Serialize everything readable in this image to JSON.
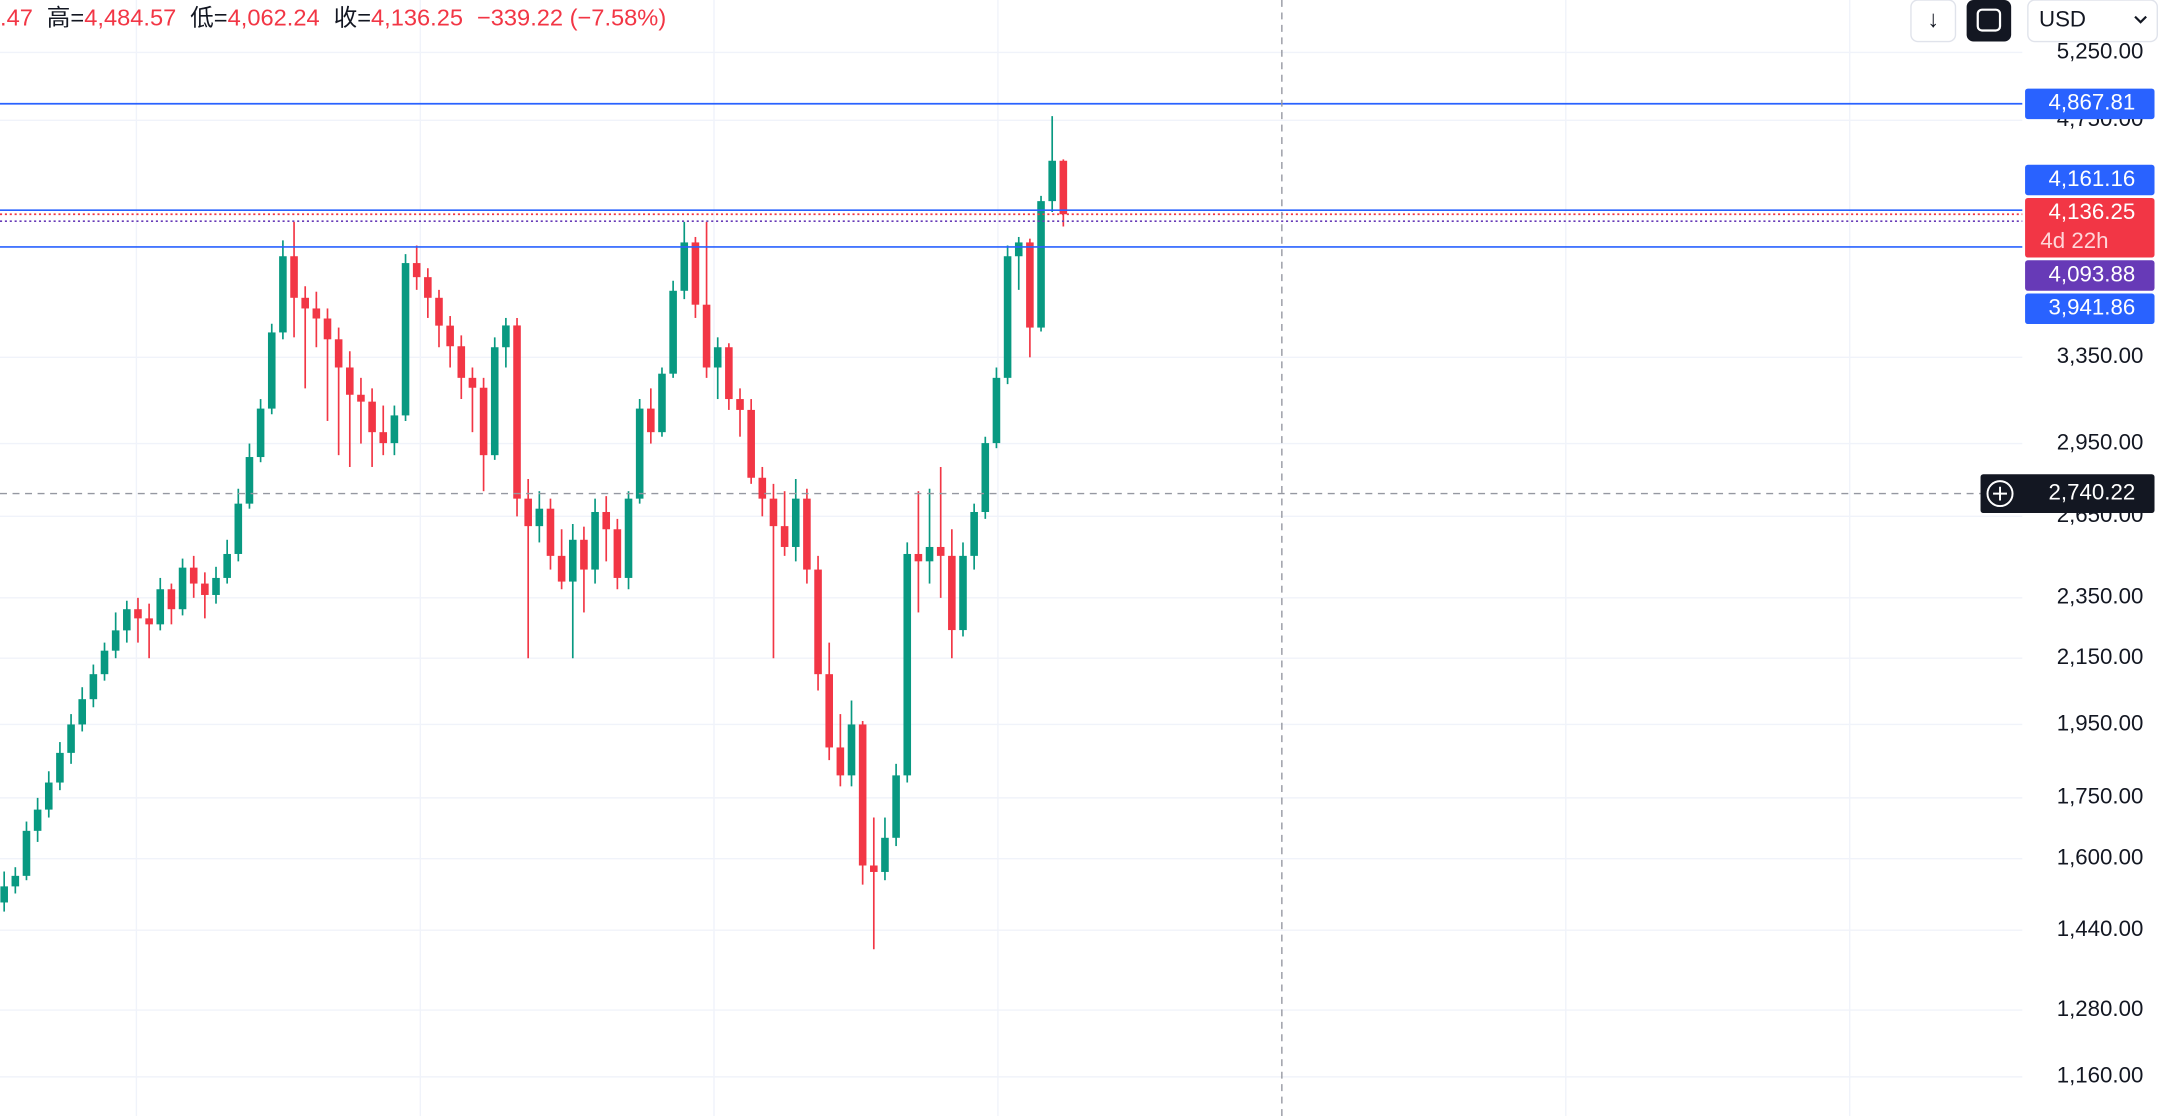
{
  "chart_data": {
    "type": "candlestick",
    "header": [
      {
        "text": ".47",
        "color": "#f23645"
      },
      {
        "text": "高=",
        "color": "#131722"
      },
      {
        "text": "4,484.57",
        "color": "#f23645"
      },
      {
        "text": "低=",
        "color": "#131722"
      },
      {
        "text": "4,062.24",
        "color": "#f23645"
      },
      {
        "text": "收=",
        "color": "#131722"
      },
      {
        "text": "4,136.25",
        "color": "#f23645"
      },
      {
        "text": "−339.22 (−7.58%)",
        "color": "#f23645"
      }
    ],
    "currency": "USD",
    "log_scale": true,
    "grid": true,
    "up_color": "#089981",
    "down_color": "#f23645",
    "ylim": [
      1095,
      5672
    ],
    "yticks": [
      {
        "value": 1160,
        "label": "1,160.00"
      },
      {
        "value": 1280,
        "label": "1,280.00"
      },
      {
        "value": 1440,
        "label": "1,440.00"
      },
      {
        "value": 1600,
        "label": "1,600.00"
      },
      {
        "value": 1750,
        "label": "1,750.00"
      },
      {
        "value": 1950,
        "label": "1,950.00"
      },
      {
        "value": 2150,
        "label": "2,150.00"
      },
      {
        "value": 2350,
        "label": "2,350.00"
      },
      {
        "value": 2650,
        "label": "2,650.00"
      },
      {
        "value": 2950,
        "label": "2,950.00"
      },
      {
        "value": 3350,
        "label": "3,350.00"
      },
      {
        "value": 4750,
        "label": "4,750.00"
      },
      {
        "value": 5250,
        "label": "5,250.00"
      }
    ],
    "price_lines": [
      {
        "value": 4867.81,
        "label": "4,867.81",
        "color": "#2962ff",
        "style": "solid"
      },
      {
        "value": 4161.16,
        "label": "4,161.16",
        "color": "#2962ff",
        "style": "solid"
      },
      {
        "value": 4093.88,
        "label": "4,093.88",
        "color": "#673ab7",
        "style": "dotted"
      },
      {
        "value": 3941.86,
        "label": "3,941.86",
        "color": "#2962ff",
        "style": "solid"
      }
    ],
    "current_price": {
      "value": 4136.25,
      "label": "4,136.25",
      "countdown": "4d 22h",
      "color": "#f23645"
    },
    "crosshair": {
      "value": 2740.22,
      "label": "2,740.22"
    },
    "ohlc": [
      [
        1500,
        1570,
        1480,
        1536
      ],
      [
        1536,
        1580,
        1520,
        1560
      ],
      [
        1560,
        1690,
        1550,
        1667
      ],
      [
        1667,
        1750,
        1640,
        1720
      ],
      [
        1720,
        1820,
        1700,
        1790
      ],
      [
        1790,
        1900,
        1770,
        1870
      ],
      [
        1870,
        1980,
        1840,
        1950
      ],
      [
        1950,
        2060,
        1930,
        2024
      ],
      [
        2024,
        2130,
        2000,
        2100
      ],
      [
        2100,
        2200,
        2080,
        2174
      ],
      [
        2174,
        2300,
        2150,
        2240
      ],
      [
        2240,
        2340,
        2200,
        2311
      ],
      [
        2311,
        2350,
        2200,
        2280
      ],
      [
        2280,
        2330,
        2150,
        2260
      ],
      [
        2260,
        2420,
        2240,
        2380
      ],
      [
        2380,
        2400,
        2260,
        2311
      ],
      [
        2311,
        2490,
        2290,
        2457
      ],
      [
        2457,
        2500,
        2350,
        2400
      ],
      [
        2400,
        2440,
        2280,
        2360
      ],
      [
        2360,
        2460,
        2330,
        2420
      ],
      [
        2420,
        2560,
        2400,
        2507
      ],
      [
        2507,
        2760,
        2480,
        2700
      ],
      [
        2700,
        2950,
        2680,
        2892
      ],
      [
        2892,
        3150,
        2870,
        3106
      ],
      [
        3106,
        3520,
        3080,
        3475
      ],
      [
        3475,
        3980,
        3440,
        3888
      ],
      [
        3888,
        4090,
        3450,
        3657
      ],
      [
        3657,
        3720,
        3200,
        3600
      ],
      [
        3600,
        3690,
        3400,
        3547
      ],
      [
        3547,
        3600,
        3050,
        3440
      ],
      [
        3440,
        3500,
        2900,
        3300
      ],
      [
        3300,
        3380,
        2850,
        3170
      ],
      [
        3170,
        3250,
        2950,
        3138
      ],
      [
        3138,
        3200,
        2850,
        3000
      ],
      [
        3000,
        3120,
        2900,
        2952
      ],
      [
        2952,
        3120,
        2900,
        3075
      ],
      [
        3075,
        3900,
        3050,
        3849
      ],
      [
        3849,
        3950,
        3700,
        3770
      ],
      [
        3770,
        3820,
        3550,
        3657
      ],
      [
        3657,
        3700,
        3400,
        3510
      ],
      [
        3510,
        3560,
        3300,
        3405
      ],
      [
        3405,
        3460,
        3150,
        3250
      ],
      [
        3250,
        3300,
        3000,
        3203
      ],
      [
        3203,
        3250,
        2750,
        2900
      ],
      [
        2900,
        3450,
        2880,
        3400
      ],
      [
        3400,
        3550,
        3300,
        3511
      ],
      [
        3511,
        3550,
        2650,
        2720
      ],
      [
        2720,
        2800,
        2150,
        2612
      ],
      [
        2612,
        2750,
        2550,
        2680
      ],
      [
        2680,
        2720,
        2450,
        2500
      ],
      [
        2500,
        2600,
        2380,
        2407
      ],
      [
        2407,
        2620,
        2150,
        2560
      ],
      [
        2560,
        2610,
        2300,
        2450
      ],
      [
        2450,
        2720,
        2400,
        2667
      ],
      [
        2667,
        2730,
        2480,
        2600
      ],
      [
        2600,
        2640,
        2380,
        2420
      ],
      [
        2420,
        2750,
        2380,
        2720
      ],
      [
        2720,
        3150,
        2700,
        3106
      ],
      [
        3106,
        3200,
        2950,
        3000
      ],
      [
        3000,
        3300,
        2980,
        3270
      ],
      [
        3270,
        3750,
        3250,
        3695
      ],
      [
        3695,
        4090,
        3650,
        3968
      ],
      [
        3968,
        4000,
        3550,
        3620
      ],
      [
        3620,
        4090,
        3250,
        3300
      ],
      [
        3300,
        3450,
        3150,
        3400
      ],
      [
        3400,
        3420,
        3100,
        3150
      ],
      [
        3150,
        3200,
        2980,
        3100
      ],
      [
        3100,
        3150,
        2780,
        2805
      ],
      [
        2805,
        2850,
        2650,
        2720
      ],
      [
        2720,
        2780,
        2150,
        2612
      ],
      [
        2612,
        2750,
        2500,
        2533
      ],
      [
        2533,
        2800,
        2480,
        2720
      ],
      [
        2720,
        2760,
        2400,
        2450
      ],
      [
        2450,
        2500,
        2050,
        2100
      ],
      [
        2100,
        2200,
        1850,
        1885
      ],
      [
        1885,
        1980,
        1780,
        1809
      ],
      [
        1809,
        2020,
        1780,
        1950
      ],
      [
        1950,
        1960,
        1540,
        1584
      ],
      [
        1584,
        1700,
        1400,
        1569
      ],
      [
        1569,
        1700,
        1550,
        1650
      ],
      [
        1650,
        1840,
        1630,
        1809
      ],
      [
        1809,
        2550,
        1790,
        2507
      ],
      [
        2507,
        2750,
        2300,
        2480
      ],
      [
        2480,
        2760,
        2400,
        2533
      ],
      [
        2533,
        2850,
        2350,
        2500
      ],
      [
        2500,
        2600,
        2150,
        2241
      ],
      [
        2241,
        2550,
        2220,
        2500
      ],
      [
        2500,
        2700,
        2450,
        2667
      ],
      [
        2667,
        2980,
        2640,
        2952
      ],
      [
        2952,
        3300,
        2930,
        3250
      ],
      [
        3250,
        3950,
        3220,
        3888
      ],
      [
        3888,
        4000,
        3700,
        3968
      ],
      [
        3968,
        3990,
        3350,
        3500
      ],
      [
        3500,
        4250,
        3480,
        4217
      ],
      [
        4217,
        4780,
        4150,
        4475.47
      ],
      [
        4475.47,
        4484.57,
        4062.24,
        4136.25
      ]
    ]
  }
}
